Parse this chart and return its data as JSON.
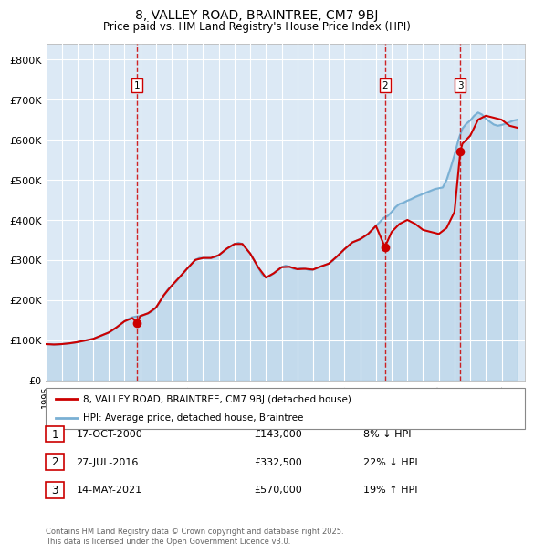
{
  "title": "8, VALLEY ROAD, BRAINTREE, CM7 9BJ",
  "subtitle": "Price paid vs. HM Land Registry's House Price Index (HPI)",
  "ylabel_ticks": [
    "£0",
    "£100K",
    "£200K",
    "£300K",
    "£400K",
    "£500K",
    "£600K",
    "£700K",
    "£800K"
  ],
  "ytick_values": [
    0,
    100000,
    200000,
    300000,
    400000,
    500000,
    600000,
    700000,
    800000
  ],
  "ylim": [
    0,
    840000
  ],
  "xlim_start": 1995.0,
  "xlim_end": 2025.5,
  "background_color": "#dce9f5",
  "line_color_hpi": "#7ab0d4",
  "line_color_price": "#cc0000",
  "sale_marker_color": "#cc0000",
  "sale_vline_color": "#cc0000",
  "legend_label_price": "8, VALLEY ROAD, BRAINTREE, CM7 9BJ (detached house)",
  "legend_label_hpi": "HPI: Average price, detached house, Braintree",
  "footer_text": "Contains HM Land Registry data © Crown copyright and database right 2025.\nThis data is licensed under the Open Government Licence v3.0.",
  "sales": [
    {
      "num": 1,
      "date_label": "17-OCT-2000",
      "price": 143000,
      "x": 2000.8,
      "hpi_pct": "8% ↓ HPI"
    },
    {
      "num": 2,
      "date_label": "27-JUL-2016",
      "price": 332500,
      "x": 2016.57,
      "hpi_pct": "22% ↓ HPI"
    },
    {
      "num": 3,
      "date_label": "14-MAY-2021",
      "price": 570000,
      "x": 2021.37,
      "hpi_pct": "19% ↑ HPI"
    }
  ],
  "hpi_x": [
    1995.0,
    1995.25,
    1995.5,
    1995.75,
    1996.0,
    1996.25,
    1996.5,
    1996.75,
    1997.0,
    1997.25,
    1997.5,
    1997.75,
    1998.0,
    1998.25,
    1998.5,
    1998.75,
    1999.0,
    1999.25,
    1999.5,
    1999.75,
    2000.0,
    2000.25,
    2000.5,
    2000.75,
    2001.0,
    2001.25,
    2001.5,
    2001.75,
    2002.0,
    2002.25,
    2002.5,
    2002.75,
    2003.0,
    2003.25,
    2003.5,
    2003.75,
    2004.0,
    2004.25,
    2004.5,
    2004.75,
    2005.0,
    2005.25,
    2005.5,
    2005.75,
    2006.0,
    2006.25,
    2006.5,
    2006.75,
    2007.0,
    2007.25,
    2007.5,
    2007.75,
    2008.0,
    2008.25,
    2008.5,
    2008.75,
    2009.0,
    2009.25,
    2009.5,
    2009.75,
    2010.0,
    2010.25,
    2010.5,
    2010.75,
    2011.0,
    2011.25,
    2011.5,
    2011.75,
    2012.0,
    2012.25,
    2012.5,
    2012.75,
    2013.0,
    2013.25,
    2013.5,
    2013.75,
    2014.0,
    2014.25,
    2014.5,
    2014.75,
    2015.0,
    2015.25,
    2015.5,
    2015.75,
    2016.0,
    2016.25,
    2016.5,
    2016.75,
    2017.0,
    2017.25,
    2017.5,
    2017.75,
    2018.0,
    2018.25,
    2018.5,
    2018.75,
    2019.0,
    2019.25,
    2019.5,
    2019.75,
    2020.0,
    2020.25,
    2020.5,
    2020.75,
    2021.0,
    2021.25,
    2021.5,
    2021.75,
    2022.0,
    2022.25,
    2022.5,
    2022.75,
    2023.0,
    2023.25,
    2023.5,
    2023.75,
    2024.0,
    2024.25,
    2024.5,
    2024.75,
    2025.0
  ],
  "hpi_y": [
    90000,
    90000,
    89000,
    89000,
    90000,
    91000,
    92000,
    93000,
    95000,
    97000,
    99000,
    101000,
    103000,
    107000,
    111000,
    115000,
    119000,
    125000,
    132000,
    140000,
    147000,
    153000,
    157000,
    159000,
    160000,
    163000,
    167000,
    172000,
    181000,
    196000,
    212000,
    226000,
    236000,
    245000,
    257000,
    268000,
    279000,
    290000,
    300000,
    305000,
    305000,
    305000,
    305000,
    307000,
    312000,
    320000,
    328000,
    335000,
    340000,
    343000,
    340000,
    328000,
    316000,
    300000,
    282000,
    264000,
    256000,
    260000,
    267000,
    275000,
    282000,
    286000,
    283000,
    278000,
    277000,
    280000,
    278000,
    275000,
    276000,
    280000,
    284000,
    287000,
    291000,
    298000,
    308000,
    318000,
    327000,
    336000,
    344000,
    348000,
    352000,
    358000,
    365000,
    375000,
    385000,
    395000,
    405000,
    410000,
    420000,
    432000,
    440000,
    443000,
    448000,
    452000,
    457000,
    461000,
    465000,
    469000,
    473000,
    477000,
    479000,
    481000,
    500000,
    530000,
    562000,
    600000,
    628000,
    640000,
    648000,
    660000,
    668000,
    663000,
    652000,
    645000,
    638000,
    635000,
    637000,
    640000,
    644000,
    648000,
    650000
  ],
  "price_x": [
    1995.0,
    1995.5,
    1996.0,
    1996.5,
    1997.0,
    1997.5,
    1998.0,
    1998.5,
    1999.0,
    1999.5,
    2000.0,
    2000.5,
    2000.8,
    2001.0,
    2001.5,
    2002.0,
    2002.5,
    2003.0,
    2003.5,
    2004.0,
    2004.5,
    2005.0,
    2005.5,
    2006.0,
    2006.5,
    2007.0,
    2007.5,
    2008.0,
    2008.5,
    2009.0,
    2009.5,
    2010.0,
    2010.5,
    2011.0,
    2011.5,
    2012.0,
    2012.5,
    2013.0,
    2013.5,
    2014.0,
    2014.5,
    2015.0,
    2015.5,
    2016.0,
    2016.57,
    2017.0,
    2017.5,
    2018.0,
    2018.5,
    2019.0,
    2019.5,
    2020.0,
    2020.5,
    2021.0,
    2021.37,
    2021.5,
    2022.0,
    2022.5,
    2023.0,
    2023.5,
    2024.0,
    2024.5,
    2025.0
  ],
  "price_y": [
    90000,
    89000,
    90000,
    92000,
    95000,
    99000,
    103000,
    111000,
    119000,
    132000,
    147000,
    155000,
    143000,
    160000,
    167000,
    181000,
    212000,
    236000,
    257000,
    279000,
    300000,
    305000,
    305000,
    312000,
    328000,
    340000,
    340000,
    316000,
    282000,
    256000,
    267000,
    282000,
    283000,
    277000,
    278000,
    276000,
    284000,
    291000,
    308000,
    327000,
    344000,
    352000,
    365000,
    385000,
    332500,
    370000,
    390000,
    400000,
    390000,
    375000,
    370000,
    365000,
    380000,
    420000,
    570000,
    590000,
    610000,
    650000,
    660000,
    655000,
    650000,
    635000,
    630000
  ]
}
